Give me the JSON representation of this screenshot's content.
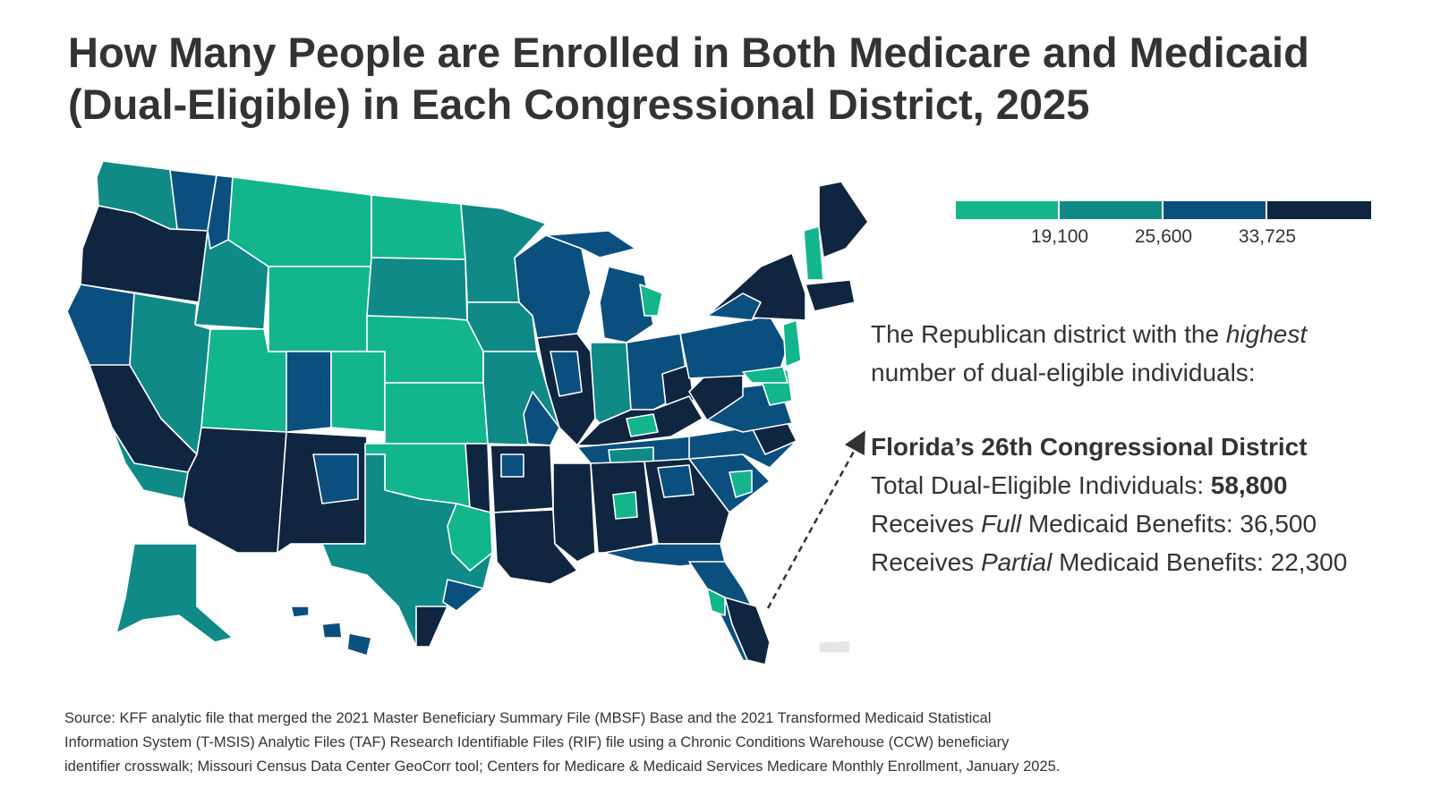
{
  "title": {
    "line1": "How Many People are Enrolled in Both Medicare and Medicaid",
    "line2": "(Dual-Eligible) in Each Congressional District, 2025"
  },
  "legend": {
    "colors": [
      "#13b58c",
      "#0f8a86",
      "#0b4f7e",
      "#0f2540"
    ],
    "ticks": [
      "19,100",
      "25,600",
      "33,725"
    ]
  },
  "map": {
    "colors": {
      "bin1": "#13b58c",
      "bin2": "#0f8a86",
      "bin3": "#0b4f7e",
      "bin4": "#0f2540",
      "no_data": "#e6e6e6",
      "border": "#ffffff"
    }
  },
  "callout": {
    "intro_prefix": "The Republican district with the ",
    "intro_emph": "highest",
    "intro_suffix": "number of dual-eligible individuals:",
    "district": "Florida’s 26th Congressional District",
    "total_label": "Total Dual-Eligible Individuals: ",
    "total_value": "58,800",
    "full_prefix": "Receives ",
    "full_emph": "Full",
    "full_suffix": " Medicaid Benefits: 36,500",
    "partial_prefix": "Receives ",
    "partial_emph": "Partial",
    "partial_suffix": " Medicaid Benefits: 22,300"
  },
  "source": {
    "line1": "Source: KFF analytic file that merged the 2021 Master Beneficiary Summary File (MBSF) Base and the 2021 Transformed Medicaid Statistical",
    "line2": "Information System (T-MSIS) Analytic Files (TAF) Research Identifiable Files (RIF) file using a Chronic Conditions Warehouse (CCW) beneficiary",
    "line3": "identifier crosswalk; Missouri Census Data Center GeoCorr tool; Centers for Medicare & Medicaid Services Medicare Monthly Enrollment, January 2025."
  }
}
